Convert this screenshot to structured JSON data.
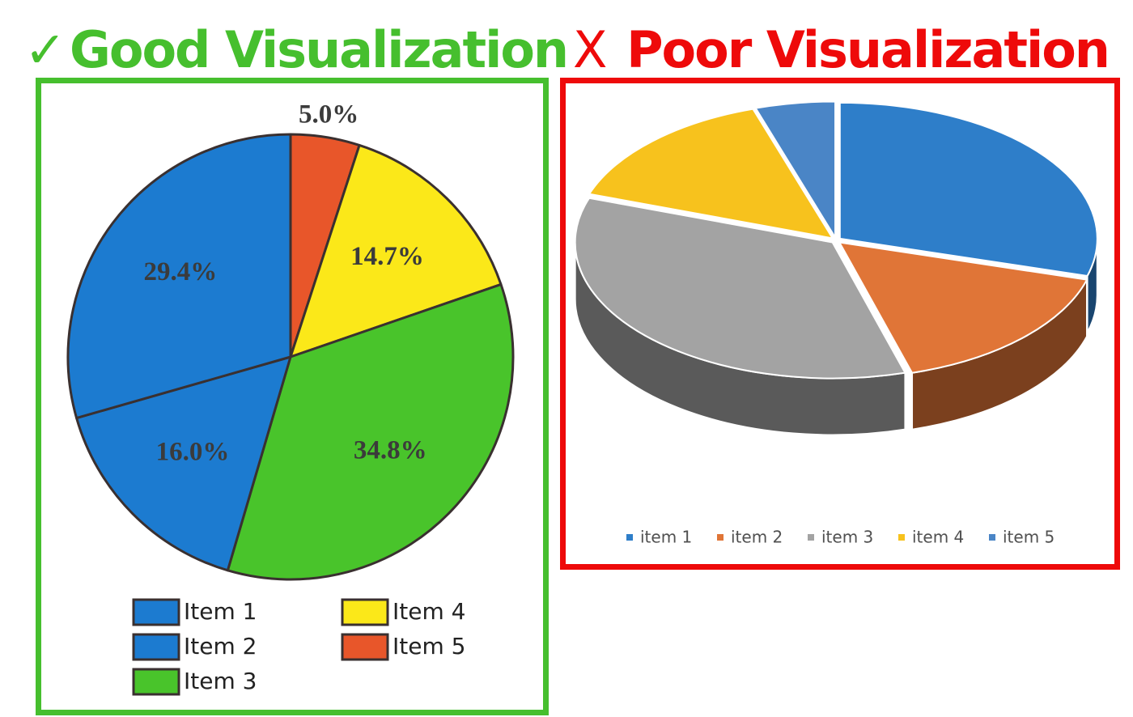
{
  "good": {
    "check_glyph": "✓",
    "title": "Good Visualization",
    "border_color": "#46bf2e",
    "chart_data": {
      "type": "pie",
      "slices": [
        {
          "label": "Item 5",
          "value": 5.0,
          "display": "5.0%",
          "color": "#e8562a"
        },
        {
          "label": "Item 4",
          "value": 14.7,
          "display": "14.7%",
          "color": "#fbe819"
        },
        {
          "label": "Item 3",
          "value": 34.8,
          "display": "34.8%",
          "color": "#49c42b"
        },
        {
          "label": "Item 2",
          "value": 16.0,
          "display": "16.0%",
          "color": "#1c7bd0"
        },
        {
          "label": "Item 1",
          "value": 29.4,
          "display": "29.4%",
          "color": "#1c7bd0"
        }
      ],
      "legend": [
        "Item 1",
        "Item 2",
        "Item 3",
        "Item 4",
        "Item 5"
      ],
      "legend_placement": "bottom"
    }
  },
  "poor": {
    "x_glyph": "X",
    "title": "Poor Visualization",
    "border_color": "#ee0a0a",
    "chart_data": {
      "type": "pie",
      "style": "3d-exploded-perspective",
      "slices": [
        {
          "label": "item 1",
          "value": 29.4,
          "color": "#2e7ec9"
        },
        {
          "label": "item 2",
          "value": 16.0,
          "color": "#e07537"
        },
        {
          "label": "item 3",
          "value": 34.8,
          "color": "#a3a3a3"
        },
        {
          "label": "item 4",
          "value": 14.7,
          "color": "#f7c21d"
        },
        {
          "label": "item 5",
          "value": 5.0,
          "color": "#4a85c6"
        }
      ],
      "legend": [
        "item 1",
        "item 2",
        "item 3",
        "item 4",
        "item 5"
      ],
      "legend_placement": "bottom"
    }
  }
}
